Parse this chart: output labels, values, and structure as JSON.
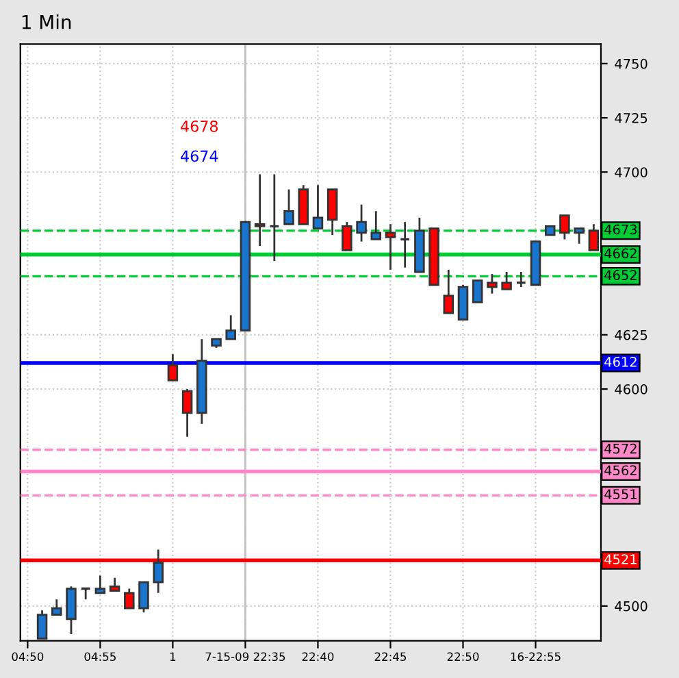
{
  "chart_data": {
    "type": "candlestick",
    "title": "1 Min",
    "categories": [
      "04:50",
      null,
      null,
      null,
      null,
      "04:55",
      null,
      null,
      null,
      null,
      "1",
      null,
      null,
      null,
      null,
      "7-15-09 22:35",
      null,
      null,
      null,
      null,
      "22:40",
      null,
      null,
      null,
      null,
      "22:45",
      null,
      null,
      null,
      null,
      "22:50",
      null,
      null,
      null,
      null,
      "16-22:55",
      null,
      null,
      null,
      null
    ],
    "ohlc": [
      null,
      [
        4485,
        4498,
        4485,
        4496
      ],
      [
        4496,
        4503,
        4496,
        4499
      ],
      [
        4494,
        4509,
        4487,
        4508
      ],
      [
        4508,
        4508,
        4503,
        4508
      ],
      [
        4506,
        4514,
        4506,
        4508
      ],
      [
        4509,
        4513,
        4507,
        4507
      ],
      [
        4506,
        4508,
        4499,
        4499
      ],
      [
        4499,
        4511,
        4497,
        4511
      ],
      [
        4511,
        4526,
        4506,
        4520
      ],
      [
        4611,
        4616,
        4604,
        4604
      ],
      [
        4599,
        4600,
        4578,
        4589
      ],
      [
        4589,
        4623,
        4584,
        4613
      ],
      [
        4620,
        4623,
        4619,
        4623
      ],
      [
        4623,
        4634,
        4623,
        4627
      ],
      [
        4627,
        4677,
        4627,
        4677
      ],
      [
        4676,
        4699,
        4666,
        4675
      ],
      [
        4675,
        4699,
        4659,
        4675
      ],
      [
        4676,
        4692,
        4676,
        4682
      ],
      [
        4692,
        4694,
        4676,
        4676
      ],
      [
        4674,
        4694,
        4674,
        4679
      ],
      [
        4692,
        4692,
        4671,
        4678
      ],
      [
        4675,
        4677,
        4664,
        4664
      ],
      [
        4672,
        4685,
        4668,
        4677
      ],
      [
        4669,
        4682,
        4669,
        4672
      ],
      [
        4672,
        4676,
        4655,
        4670
      ],
      [
        4669,
        4677,
        4656,
        4669
      ],
      [
        4654,
        4679,
        4654,
        4673
      ],
      [
        4674,
        4674,
        4648,
        4648
      ],
      [
        4643,
        4655,
        4635,
        4635
      ],
      [
        4632,
        4648,
        4632,
        4647
      ],
      [
        4640,
        4650,
        4640,
        4650
      ],
      [
        4649,
        4653,
        4644,
        4647
      ],
      [
        4649,
        4654,
        4646,
        4646
      ],
      [
        4649,
        4654,
        4647,
        4649
      ],
      [
        4648,
        4668,
        4648,
        4668
      ],
      [
        4671,
        4675,
        4671,
        4675
      ],
      [
        4680,
        4680,
        4669,
        4672
      ],
      [
        4672,
        4674,
        4667,
        4674
      ],
      [
        4673,
        4676,
        4664,
        4664
      ]
    ],
    "colors": [
      null,
      "#1874cd",
      "#1874cd",
      "#1874cd",
      "#333333",
      "#1874cd",
      "#ff0000",
      "#ff0000",
      "#1874cd",
      "#1874cd",
      "#ff0000",
      "#ff0000",
      "#1874cd",
      "#1874cd",
      "#1874cd",
      "#1874cd",
      "#ff0000",
      "#333333",
      "#1874cd",
      "#ff0000",
      "#1874cd",
      "#ff0000",
      "#ff0000",
      "#1874cd",
      "#1874cd",
      "#ff0000",
      "#333333",
      "#1874cd",
      "#ff0000",
      "#ff0000",
      "#1874cd",
      "#1874cd",
      "#ff0000",
      "#ff0000",
      "#333333",
      "#1874cd",
      "#1874cd",
      "#ff0000",
      "#1874cd",
      "#ff0000"
    ],
    "ylim": [
      4484,
      4759
    ],
    "yticks": [
      4500,
      4600,
      4625,
      4700,
      4725,
      4750
    ],
    "ref_lines": [
      {
        "axis": "y",
        "value": 4673,
        "label": "4673",
        "color": "#00cc33",
        "line_style": "dashed"
      },
      {
        "axis": "y",
        "value": 4662,
        "label": "4662",
        "color": "#00cc33",
        "line_style": "solid"
      },
      {
        "axis": "y",
        "value": 4652,
        "label": "4652",
        "color": "#00cc33",
        "line_style": "dashed"
      },
      {
        "axis": "y",
        "value": 4612,
        "label": "4612",
        "color": "#0000ff",
        "line_style": "solid"
      },
      {
        "axis": "y",
        "value": 4572,
        "label": "4572",
        "color": "#ff88c8",
        "line_style": "dashed"
      },
      {
        "axis": "y",
        "value": 4562,
        "label": "4562",
        "color": "#ff88c8",
        "line_style": "solid"
      },
      {
        "axis": "y",
        "value": 4551,
        "label": "4551",
        "color": "#ff88c8",
        "line_style": "dashed"
      },
      {
        "axis": "y",
        "value": 4521,
        "label": "4521",
        "color": "#ff0000",
        "line_style": "solid"
      },
      {
        "axis": "x",
        "value": "7-15-09 22:35",
        "color": "#c0c0c0",
        "line_style": "solid"
      }
    ],
    "annotations": [
      "4678",
      "4674"
    ],
    "grid": true,
    "legend": false
  }
}
